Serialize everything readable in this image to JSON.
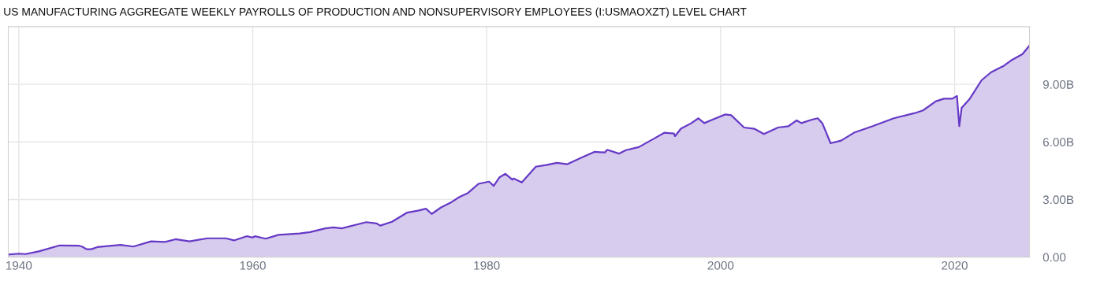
{
  "chart_data": {
    "type": "area",
    "title": "US MANUFACTURING AGGREGATE WEEKLY PAYROLLS OF PRODUCTION AND NONSUPERVISORY EMPLOYEES (I:USMAOXZT) LEVEL CHART",
    "x": [
      1939.1,
      1940,
      1940.6,
      1941.7,
      1943.5,
      1945.1,
      1945.4,
      1945.8,
      1946.2,
      1946.7,
      1948.7,
      1949.8,
      1951.3,
      1952.5,
      1953.4,
      1954.6,
      1956.1,
      1957.7,
      1958.4,
      1959.5,
      1960,
      1960.2,
      1961.1,
      1962.2,
      1964,
      1964.9,
      1966.2,
      1966.9,
      1967.6,
      1969.7,
      1970.6,
      1970.9,
      1971.9,
      1973.2,
      1974.2,
      1974.8,
      1975.3,
      1976.1,
      1977,
      1977.7,
      1978.4,
      1979.3,
      1980.2,
      1980.6,
      1981.1,
      1981.6,
      1982.2,
      1982.3,
      1983,
      1984.2,
      1985.1,
      1986,
      1986.9,
      1988.1,
      1989.2,
      1990.1,
      1990.3,
      1991.3,
      1991.9,
      1993,
      1994.3,
      1995.2,
      1996,
      1996.1,
      1996.6,
      1997.5,
      1998.1,
      1998.6,
      1999.3,
      2000.4,
      2000.9,
      2002,
      2002.9,
      2003.7,
      2004.9,
      2005.8,
      2006.5,
      2006.9,
      2007.8,
      2008.3,
      2008.7,
      2009.4,
      2010.3,
      2011.4,
      2013,
      2014.8,
      2016.6,
      2017.3,
      2018.4,
      2019.1,
      2019.8,
      2020.2,
      2020.4,
      2020.6,
      2021.3,
      2022.3,
      2023.1,
      2024.2,
      2024.8,
      2025.8,
      2026.4
    ],
    "series": [
      {
        "color": "#6639c6",
        "values": [
          0.14,
          0.18,
          0.16,
          0.3,
          0.61,
          0.6,
          0.55,
          0.41,
          0.41,
          0.52,
          0.64,
          0.55,
          0.82,
          0.79,
          0.93,
          0.82,
          0.98,
          0.98,
          0.87,
          1.09,
          1.02,
          1.09,
          0.96,
          1.16,
          1.23,
          1.3,
          1.5,
          1.55,
          1.5,
          1.82,
          1.75,
          1.64,
          1.84,
          2.32,
          2.43,
          2.52,
          2.25,
          2.59,
          2.87,
          3.14,
          3.34,
          3.82,
          3.93,
          3.71,
          4.16,
          4.34,
          4.03,
          4.1,
          3.89,
          4.71,
          4.8,
          4.91,
          4.84,
          5.18,
          5.48,
          5.45,
          5.59,
          5.39,
          5.57,
          5.73,
          6.17,
          6.48,
          6.44,
          6.3,
          6.69,
          6.98,
          7.23,
          6.98,
          7.16,
          7.43,
          7.39,
          6.75,
          6.68,
          6.41,
          6.75,
          6.82,
          7.12,
          6.98,
          7.16,
          7.23,
          6.96,
          5.93,
          6.07,
          6.48,
          6.82,
          7.23,
          7.5,
          7.64,
          8.12,
          8.25,
          8.25,
          8.39,
          6.82,
          7.77,
          8.25,
          9.21,
          9.62,
          9.96,
          10.23,
          10.57,
          11.02
        ]
      }
    ],
    "xlim": [
      1939.1,
      2026.4
    ],
    "xticks": [
      1940,
      1960,
      1980,
      2000,
      2020
    ],
    "ylim": [
      0,
      12
    ],
    "yticks": [
      {
        "value": 0,
        "label": "0.00"
      },
      {
        "value": 3,
        "label": "3.00B"
      },
      {
        "value": 6,
        "label": "6.00B"
      },
      {
        "value": 9,
        "label": "9.00B"
      }
    ],
    "grid": true
  }
}
